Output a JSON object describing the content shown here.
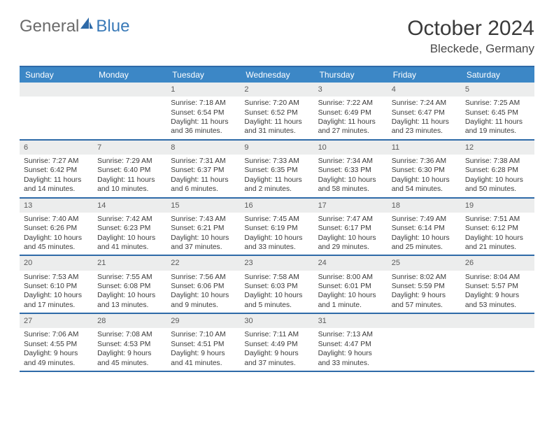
{
  "brand": {
    "part1": "General",
    "part2": "Blue"
  },
  "title": "October 2024",
  "location": "Bleckede, Germany",
  "colors": {
    "header_bg": "#3c87c6",
    "border": "#2e6aa8",
    "daynum_bg": "#eceded",
    "text": "#3a3a3a",
    "brand_gray": "#6b6b6b",
    "brand_blue": "#3a7ab8"
  },
  "days_of_week": [
    "Sunday",
    "Monday",
    "Tuesday",
    "Wednesday",
    "Thursday",
    "Friday",
    "Saturday"
  ],
  "weeks": [
    [
      null,
      null,
      {
        "n": "1",
        "sr": "Sunrise: 7:18 AM",
        "ss": "Sunset: 6:54 PM",
        "d1": "Daylight: 11 hours",
        "d2": "and 36 minutes."
      },
      {
        "n": "2",
        "sr": "Sunrise: 7:20 AM",
        "ss": "Sunset: 6:52 PM",
        "d1": "Daylight: 11 hours",
        "d2": "and 31 minutes."
      },
      {
        "n": "3",
        "sr": "Sunrise: 7:22 AM",
        "ss": "Sunset: 6:49 PM",
        "d1": "Daylight: 11 hours",
        "d2": "and 27 minutes."
      },
      {
        "n": "4",
        "sr": "Sunrise: 7:24 AM",
        "ss": "Sunset: 6:47 PM",
        "d1": "Daylight: 11 hours",
        "d2": "and 23 minutes."
      },
      {
        "n": "5",
        "sr": "Sunrise: 7:25 AM",
        "ss": "Sunset: 6:45 PM",
        "d1": "Daylight: 11 hours",
        "d2": "and 19 minutes."
      }
    ],
    [
      {
        "n": "6",
        "sr": "Sunrise: 7:27 AM",
        "ss": "Sunset: 6:42 PM",
        "d1": "Daylight: 11 hours",
        "d2": "and 14 minutes."
      },
      {
        "n": "7",
        "sr": "Sunrise: 7:29 AM",
        "ss": "Sunset: 6:40 PM",
        "d1": "Daylight: 11 hours",
        "d2": "and 10 minutes."
      },
      {
        "n": "8",
        "sr": "Sunrise: 7:31 AM",
        "ss": "Sunset: 6:37 PM",
        "d1": "Daylight: 11 hours",
        "d2": "and 6 minutes."
      },
      {
        "n": "9",
        "sr": "Sunrise: 7:33 AM",
        "ss": "Sunset: 6:35 PM",
        "d1": "Daylight: 11 hours",
        "d2": "and 2 minutes."
      },
      {
        "n": "10",
        "sr": "Sunrise: 7:34 AM",
        "ss": "Sunset: 6:33 PM",
        "d1": "Daylight: 10 hours",
        "d2": "and 58 minutes."
      },
      {
        "n": "11",
        "sr": "Sunrise: 7:36 AM",
        "ss": "Sunset: 6:30 PM",
        "d1": "Daylight: 10 hours",
        "d2": "and 54 minutes."
      },
      {
        "n": "12",
        "sr": "Sunrise: 7:38 AM",
        "ss": "Sunset: 6:28 PM",
        "d1": "Daylight: 10 hours",
        "d2": "and 50 minutes."
      }
    ],
    [
      {
        "n": "13",
        "sr": "Sunrise: 7:40 AM",
        "ss": "Sunset: 6:26 PM",
        "d1": "Daylight: 10 hours",
        "d2": "and 45 minutes."
      },
      {
        "n": "14",
        "sr": "Sunrise: 7:42 AM",
        "ss": "Sunset: 6:23 PM",
        "d1": "Daylight: 10 hours",
        "d2": "and 41 minutes."
      },
      {
        "n": "15",
        "sr": "Sunrise: 7:43 AM",
        "ss": "Sunset: 6:21 PM",
        "d1": "Daylight: 10 hours",
        "d2": "and 37 minutes."
      },
      {
        "n": "16",
        "sr": "Sunrise: 7:45 AM",
        "ss": "Sunset: 6:19 PM",
        "d1": "Daylight: 10 hours",
        "d2": "and 33 minutes."
      },
      {
        "n": "17",
        "sr": "Sunrise: 7:47 AM",
        "ss": "Sunset: 6:17 PM",
        "d1": "Daylight: 10 hours",
        "d2": "and 29 minutes."
      },
      {
        "n": "18",
        "sr": "Sunrise: 7:49 AM",
        "ss": "Sunset: 6:14 PM",
        "d1": "Daylight: 10 hours",
        "d2": "and 25 minutes."
      },
      {
        "n": "19",
        "sr": "Sunrise: 7:51 AM",
        "ss": "Sunset: 6:12 PM",
        "d1": "Daylight: 10 hours",
        "d2": "and 21 minutes."
      }
    ],
    [
      {
        "n": "20",
        "sr": "Sunrise: 7:53 AM",
        "ss": "Sunset: 6:10 PM",
        "d1": "Daylight: 10 hours",
        "d2": "and 17 minutes."
      },
      {
        "n": "21",
        "sr": "Sunrise: 7:55 AM",
        "ss": "Sunset: 6:08 PM",
        "d1": "Daylight: 10 hours",
        "d2": "and 13 minutes."
      },
      {
        "n": "22",
        "sr": "Sunrise: 7:56 AM",
        "ss": "Sunset: 6:06 PM",
        "d1": "Daylight: 10 hours",
        "d2": "and 9 minutes."
      },
      {
        "n": "23",
        "sr": "Sunrise: 7:58 AM",
        "ss": "Sunset: 6:03 PM",
        "d1": "Daylight: 10 hours",
        "d2": "and 5 minutes."
      },
      {
        "n": "24",
        "sr": "Sunrise: 8:00 AM",
        "ss": "Sunset: 6:01 PM",
        "d1": "Daylight: 10 hours",
        "d2": "and 1 minute."
      },
      {
        "n": "25",
        "sr": "Sunrise: 8:02 AM",
        "ss": "Sunset: 5:59 PM",
        "d1": "Daylight: 9 hours",
        "d2": "and 57 minutes."
      },
      {
        "n": "26",
        "sr": "Sunrise: 8:04 AM",
        "ss": "Sunset: 5:57 PM",
        "d1": "Daylight: 9 hours",
        "d2": "and 53 minutes."
      }
    ],
    [
      {
        "n": "27",
        "sr": "Sunrise: 7:06 AM",
        "ss": "Sunset: 4:55 PM",
        "d1": "Daylight: 9 hours",
        "d2": "and 49 minutes."
      },
      {
        "n": "28",
        "sr": "Sunrise: 7:08 AM",
        "ss": "Sunset: 4:53 PM",
        "d1": "Daylight: 9 hours",
        "d2": "and 45 minutes."
      },
      {
        "n": "29",
        "sr": "Sunrise: 7:10 AM",
        "ss": "Sunset: 4:51 PM",
        "d1": "Daylight: 9 hours",
        "d2": "and 41 minutes."
      },
      {
        "n": "30",
        "sr": "Sunrise: 7:11 AM",
        "ss": "Sunset: 4:49 PM",
        "d1": "Daylight: 9 hours",
        "d2": "and 37 minutes."
      },
      {
        "n": "31",
        "sr": "Sunrise: 7:13 AM",
        "ss": "Sunset: 4:47 PM",
        "d1": "Daylight: 9 hours",
        "d2": "and 33 minutes."
      },
      null,
      null
    ]
  ]
}
